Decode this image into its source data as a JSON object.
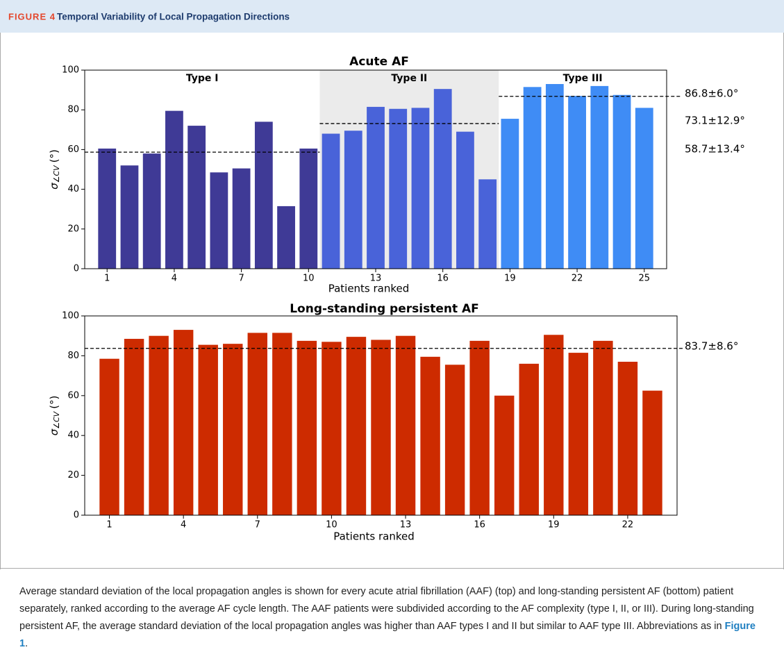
{
  "header": {
    "figure_label": "FIGURE 4",
    "title": "Temporal Variability of Local Propagation Directions"
  },
  "chart_data": [
    {
      "type": "bar",
      "title": "Acute AF",
      "x_label": "Patients ranked",
      "y_label_symbol": "σ",
      "y_label_subscript": "∠CV",
      "y_label_unit": "(°)",
      "x": [
        1,
        2,
        3,
        4,
        5,
        6,
        7,
        8,
        9,
        10,
        11,
        12,
        13,
        14,
        15,
        16,
        17,
        18,
        19,
        20,
        21,
        22,
        23,
        24,
        25
      ],
      "values": [
        60.5,
        52,
        58,
        79.5,
        72,
        48.5,
        50.5,
        74,
        31.5,
        60.5,
        68,
        69.5,
        81.5,
        80.5,
        81,
        90.5,
        69,
        45,
        75.5,
        91.5,
        93,
        87,
        92,
        87.5,
        81
      ],
      "xlim": [
        0,
        26
      ],
      "xticks": [
        1,
        4,
        7,
        10,
        13,
        16,
        19,
        22,
        25
      ],
      "ylim": [
        0,
        100
      ],
      "yticks": [
        0,
        20,
        40,
        60,
        80,
        100
      ],
      "groups": [
        {
          "label": "Type I",
          "x_range": [
            0,
            10.5
          ],
          "color": "#3f3a96",
          "shaded": false,
          "mean": 58.7,
          "mean_label": "58.7±13.4°"
        },
        {
          "label": "Type II",
          "x_range": [
            10.5,
            18.5
          ],
          "color": "#4963d9",
          "shaded": true,
          "mean": 73.1,
          "mean_label": "73.1±12.9°"
        },
        {
          "label": "Type III",
          "x_range": [
            18.5,
            26
          ],
          "color": "#3f8cf5",
          "shaded": false,
          "mean": 86.8,
          "mean_label": "86.8±6.0°"
        }
      ]
    },
    {
      "type": "bar",
      "title": "Long-standing persistent AF",
      "x_label": "Patients ranked",
      "y_label_symbol": "σ",
      "y_label_subscript": "∠CV",
      "y_label_unit": "(°)",
      "x": [
        1,
        2,
        3,
        4,
        5,
        6,
        7,
        8,
        9,
        10,
        11,
        12,
        13,
        14,
        15,
        16,
        17,
        18,
        19,
        20,
        21,
        22,
        23
      ],
      "values": [
        78.5,
        88.5,
        90,
        93,
        85.5,
        86,
        91.5,
        91.5,
        87.5,
        87,
        89.5,
        88,
        90,
        79.5,
        75.5,
        87.5,
        60,
        76,
        90.5,
        81.5,
        87.5,
        77,
        62.5
      ],
      "color": "#cd2b00",
      "xlim": [
        0,
        24
      ],
      "xticks": [
        1,
        4,
        7,
        10,
        13,
        16,
        19,
        22
      ],
      "ylim": [
        0,
        100
      ],
      "yticks": [
        0,
        20,
        40,
        60,
        80,
        100
      ],
      "mean": 83.7,
      "mean_label": "83.7±8.6°"
    }
  ],
  "caption": {
    "text": "Average standard deviation of the local propagation angles is shown for every acute atrial fibrillation (AAF) (top) and long-standing persistent AF (bottom) patient separately, ranked according to the average AF cycle length. The AAF patients were subdivided according to the AF complexity (type I, II, or III). During long-standing persistent AF, the average standard deviation of the local propagation angles was higher than AAF types I and II but similar to AAF type III. Abbreviations as in ",
    "link": "Figure 1",
    "end": "."
  }
}
